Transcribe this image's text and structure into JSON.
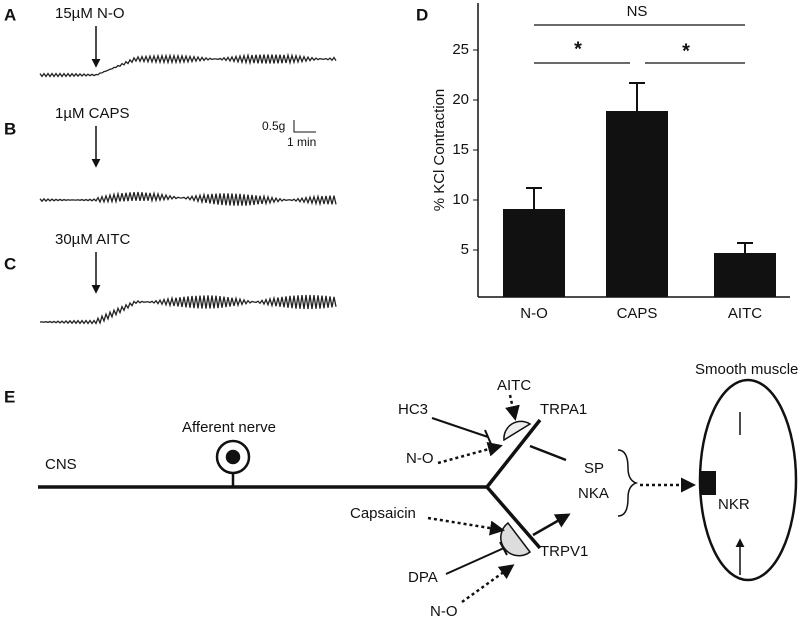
{
  "panel_labels": [
    "A",
    "B",
    "C",
    "D",
    "E"
  ],
  "traces": [
    {
      "label": "15µM N-O"
    },
    {
      "label": "1µM CAPS"
    },
    {
      "label": "30µM AITC"
    }
  ],
  "scale_bar": {
    "force": "0.5g",
    "time": "1 min"
  },
  "chart_data": {
    "type": "bar",
    "ylabel": "% KCl Contraction",
    "categories": [
      "N-O",
      "CAPS",
      "AITC"
    ],
    "values": [
      9.1,
      18.9,
      4.7
    ],
    "errors": [
      2.1,
      2.8,
      1.0
    ],
    "color": "#111111",
    "ylim": [
      0,
      30
    ],
    "yticks": [
      5,
      10,
      15,
      20,
      25
    ],
    "significance": [
      {
        "label": "NS"
      },
      {
        "label": "*"
      },
      {
        "label": "*"
      }
    ]
  },
  "diagram": {
    "cns": "CNS",
    "afferent": "Afferent nerve",
    "hc3": "HC3",
    "aitc": "AITC",
    "no_top": "N-O",
    "trpa1": "TRPA1",
    "sp": "SP",
    "nka": "NKA",
    "capsaicin": "Capsaicin",
    "dpa": "DPA",
    "no_bottom": "N-O",
    "trpv1": "TRPV1",
    "smooth_muscle": "Smooth muscle",
    "nkr": "NKR"
  }
}
